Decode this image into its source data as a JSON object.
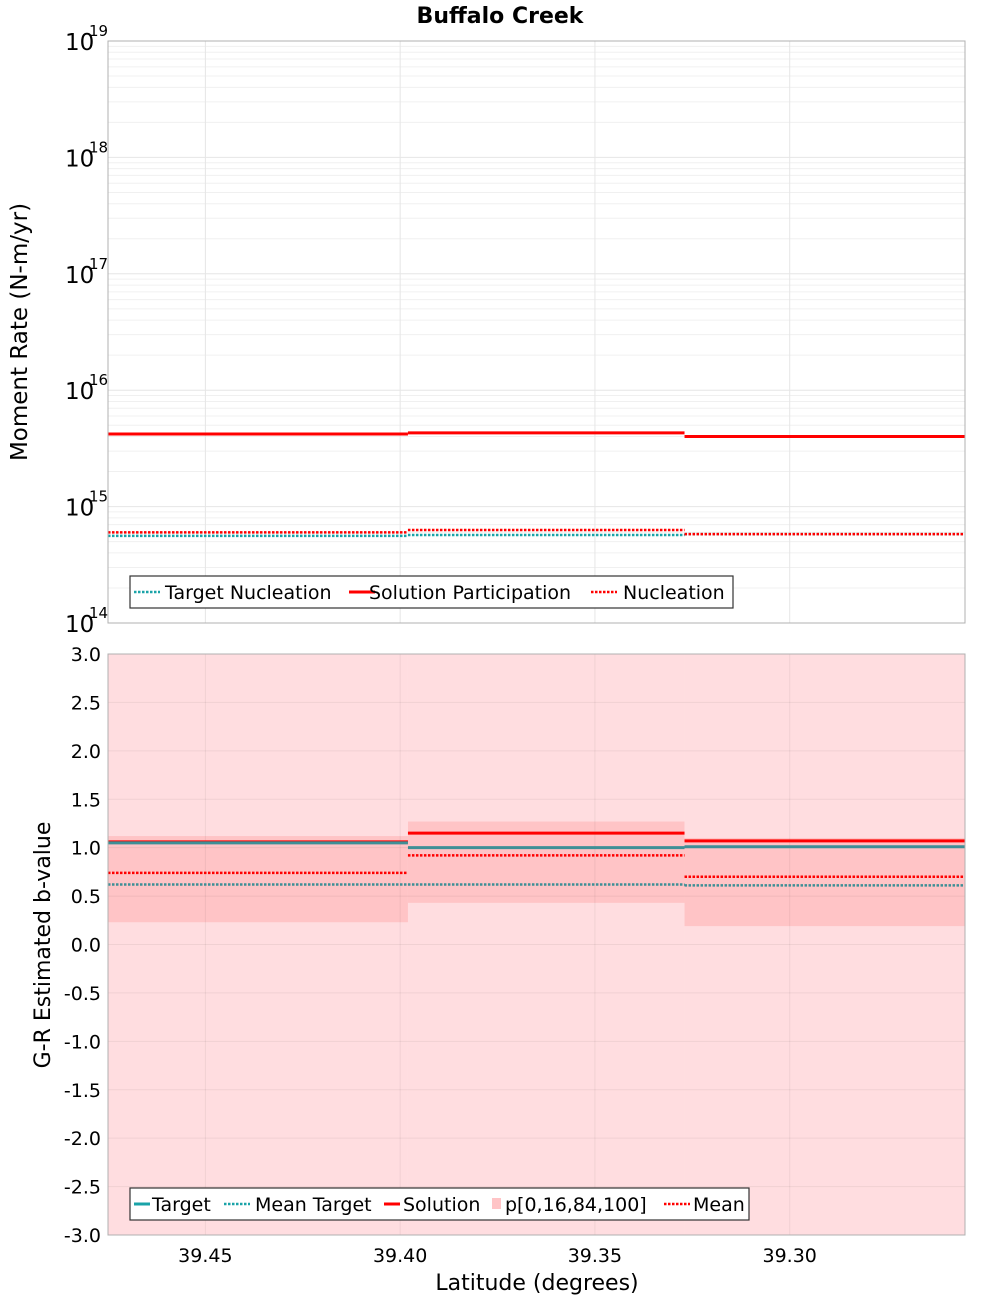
{
  "title": "Buffalo Creek",
  "colors": {
    "target": "#1aa3a8",
    "solution": "#ff0000",
    "band_outer": "#ffdde0",
    "band_inner": "#ffc4c6",
    "grid": "#e6e6e6",
    "frame": "#b0b0b0"
  },
  "chart_data": [
    {
      "type": "line",
      "title": "Buffalo Creek",
      "xlabel": "",
      "ylabel": "Moment Rate (N-m/yr)",
      "yscale": "log",
      "ylim_exponents": [
        14,
        19
      ],
      "ytick_labels": [
        {
          "exp": 14,
          "base": "10",
          "sup": "14"
        },
        {
          "exp": 15,
          "base": "10",
          "sup": "15"
        },
        {
          "exp": 16,
          "base": "10",
          "sup": "16"
        },
        {
          "exp": 17,
          "base": "10",
          "sup": "17"
        },
        {
          "exp": 18,
          "base": "10",
          "sup": "18"
        },
        {
          "exp": 19,
          "base": "10",
          "sup": "19"
        }
      ],
      "xlim": [
        39.475,
        39.255
      ],
      "x_bins": [
        [
          39.475,
          39.398
        ],
        [
          39.398,
          39.327
        ],
        [
          39.327,
          39.255
        ]
      ],
      "series": [
        {
          "name": "Target Nucleation",
          "style": "dotted",
          "color": "#1aa3a8",
          "values": [
            560000000000000.0,
            570000000000000.0,
            580000000000000.0
          ]
        },
        {
          "name": "Solution Participation",
          "style": "solid",
          "color": "#ff0000",
          "values": [
            4200000000000000.0,
            4300000000000000.0,
            4000000000000000.0
          ]
        },
        {
          "name": "Nucleation",
          "style": "dotted",
          "color": "#ff0000",
          "values": [
            600000000000000.0,
            630000000000000.0,
            580000000000000.0
          ]
        }
      ],
      "legend": [
        "Target Nucleation",
        "Solution Participation",
        "Nucleation"
      ],
      "legend_position": "bottom-left",
      "grid": true
    },
    {
      "type": "line",
      "title": "",
      "xlabel": "Latitude (degrees)",
      "ylabel": "G-R Estimated b-value",
      "ylim": [
        -3.0,
        3.0
      ],
      "yticks": [
        "3.0",
        "2.5",
        "2.0",
        "1.5",
        "1.0",
        "0.5",
        "0.0",
        "-0.5",
        "-1.0",
        "-1.5",
        "-2.0",
        "-2.5",
        "-3.0"
      ],
      "xlim": [
        39.475,
        39.255
      ],
      "xticks": [
        "39.45",
        "39.40",
        "39.35",
        "39.30"
      ],
      "x_bins": [
        [
          39.475,
          39.398
        ],
        [
          39.398,
          39.327
        ],
        [
          39.327,
          39.255
        ]
      ],
      "series": [
        {
          "name": "Target",
          "style": "solid",
          "color": "#1aa3a8",
          "values": [
            1.05,
            1.0,
            1.01
          ]
        },
        {
          "name": "Mean Target",
          "style": "dotted",
          "color": "#1aa3a8",
          "values": [
            0.62,
            0.62,
            0.61
          ]
        },
        {
          "name": "Solution",
          "style": "solid",
          "color": "#ff0000",
          "values": [
            1.06,
            1.15,
            1.07
          ]
        },
        {
          "name": "Mean",
          "style": "dotted",
          "color": "#ff0000",
          "values": [
            0.74,
            0.92,
            0.7
          ]
        }
      ],
      "band": {
        "name": "p[0,16,84,100]",
        "p0": [
          -3.0,
          -3.0,
          -3.0
        ],
        "p16": [
          0.23,
          0.43,
          0.19
        ],
        "p84": [
          1.12,
          1.27,
          1.1
        ],
        "p100": [
          3.0,
          3.0,
          3.0
        ]
      },
      "legend": [
        "Target",
        "Mean Target",
        "Solution",
        "p[0,16,84,100]",
        "Mean"
      ],
      "legend_position": "bottom-left",
      "grid": true
    }
  ]
}
